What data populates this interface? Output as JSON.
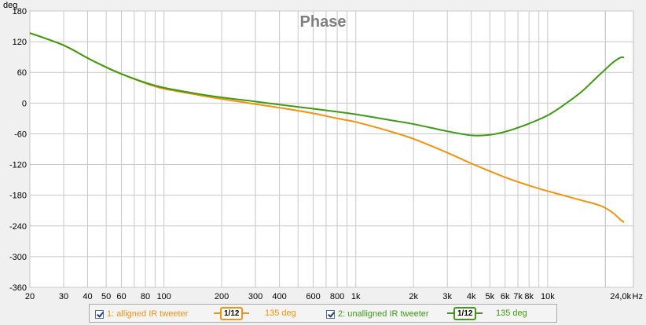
{
  "chart_data": {
    "type": "line",
    "title": "Phase",
    "ylabel": "deg",
    "xlabel": "",
    "x_unit": "Hz",
    "x_scale": "log",
    "xlim": [
      20,
      28000
    ],
    "ylim": [
      -360,
      180
    ],
    "grid": true,
    "legend_placement": "bottom",
    "y_ticks": [
      180,
      120,
      60,
      0,
      -60,
      -120,
      -180,
      -240,
      -300,
      -360
    ],
    "x_ticks": [
      {
        "v": 20,
        "label": "20"
      },
      {
        "v": 30,
        "label": "30"
      },
      {
        "v": 40,
        "label": "40"
      },
      {
        "v": 50,
        "label": "50"
      },
      {
        "v": 60,
        "label": "60"
      },
      {
        "v": 80,
        "label": "80"
      },
      {
        "v": 100,
        "label": "100"
      },
      {
        "v": 200,
        "label": "200"
      },
      {
        "v": 300,
        "label": "300"
      },
      {
        "v": 400,
        "label": "400"
      },
      {
        "v": 600,
        "label": "600"
      },
      {
        "v": 800,
        "label": "800"
      },
      {
        "v": 1000,
        "label": "1k"
      },
      {
        "v": 2000,
        "label": "2k"
      },
      {
        "v": 3000,
        "label": "3k"
      },
      {
        "v": 4000,
        "label": "4k"
      },
      {
        "v": 5000,
        "label": "5k"
      },
      {
        "v": 6000,
        "label": "6k"
      },
      {
        "v": 7000,
        "label": "7k"
      },
      {
        "v": 8000,
        "label": "8k"
      },
      {
        "v": 10000,
        "label": "10k"
      },
      {
        "v": 24000,
        "label": "24,0k"
      }
    ],
    "series": [
      {
        "name": "1: alligned IR tweeter",
        "color": "#f2920f",
        "points": [
          [
            20,
            137
          ],
          [
            30,
            113
          ],
          [
            40,
            88
          ],
          [
            50,
            70
          ],
          [
            60,
            57
          ],
          [
            80,
            39
          ],
          [
            100,
            28
          ],
          [
            150,
            16
          ],
          [
            200,
            8
          ],
          [
            300,
            -2
          ],
          [
            400,
            -9
          ],
          [
            600,
            -20
          ],
          [
            800,
            -30
          ],
          [
            1000,
            -37
          ],
          [
            1500,
            -55
          ],
          [
            2000,
            -70
          ],
          [
            3000,
            -97
          ],
          [
            4000,
            -118
          ],
          [
            5000,
            -133
          ],
          [
            6000,
            -145
          ],
          [
            7000,
            -154
          ],
          [
            8000,
            -161
          ],
          [
            10000,
            -172
          ],
          [
            12000,
            -180
          ],
          [
            15000,
            -190
          ],
          [
            18000,
            -198
          ],
          [
            20000,
            -205
          ],
          [
            22000,
            -215
          ],
          [
            24000,
            -228
          ],
          [
            25000,
            -233
          ]
        ]
      },
      {
        "name": "2: unalligned IR tweeter",
        "color": "#3e9a14",
        "points": [
          [
            20,
            137
          ],
          [
            30,
            113
          ],
          [
            40,
            88
          ],
          [
            50,
            70
          ],
          [
            60,
            57
          ],
          [
            80,
            40
          ],
          [
            100,
            30
          ],
          [
            150,
            18
          ],
          [
            200,
            11
          ],
          [
            300,
            3
          ],
          [
            400,
            -3
          ],
          [
            600,
            -11
          ],
          [
            800,
            -17
          ],
          [
            1000,
            -22
          ],
          [
            1500,
            -33
          ],
          [
            2000,
            -41
          ],
          [
            3000,
            -55
          ],
          [
            4000,
            -63
          ],
          [
            5000,
            -62
          ],
          [
            6000,
            -56
          ],
          [
            7000,
            -48
          ],
          [
            8000,
            -40
          ],
          [
            10000,
            -24
          ],
          [
            12000,
            -5
          ],
          [
            15000,
            22
          ],
          [
            18000,
            50
          ],
          [
            20000,
            66
          ],
          [
            22000,
            80
          ],
          [
            24000,
            89
          ],
          [
            25000,
            89
          ]
        ]
      }
    ]
  },
  "legend": [
    {
      "label": "1: alligned IR tweeter",
      "smoothing": "1/12",
      "value": "135 deg",
      "color": "#f2920f"
    },
    {
      "label": "2: unalligned IR tweeter",
      "smoothing": "1/12",
      "value": "135 deg",
      "color": "#3e9a14"
    }
  ]
}
